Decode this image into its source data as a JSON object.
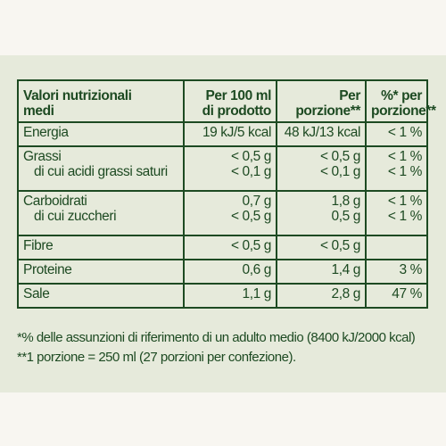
{
  "header": {
    "nutrient": [
      "Valori nutrizionali",
      "medi"
    ],
    "per_100": [
      "Per 100 ml",
      "di prodotto"
    ],
    "per_portion": [
      "Per",
      "porzione**"
    ],
    "percent": [
      "%* per",
      "porzione**"
    ]
  },
  "rows": [
    {
      "labels": [
        "Energia"
      ],
      "per_100": [
        "19 kJ/5 kcal"
      ],
      "per_portion": [
        "48 kJ/13 kcal"
      ],
      "percent": [
        "< 1 %"
      ]
    },
    {
      "labels": [
        "Grassi",
        "di cui acidi grassi saturi"
      ],
      "per_100": [
        "< 0,5 g",
        "< 0,1 g"
      ],
      "per_portion": [
        "< 0,5 g",
        "< 0,1 g"
      ],
      "percent": [
        "< 1 %",
        "< 1 %"
      ]
    },
    {
      "labels": [
        "Carboidrati",
        "di cui zuccheri"
      ],
      "per_100": [
        "0,7 g",
        "< 0,5 g"
      ],
      "per_portion": [
        "1,8 g",
        "0,5 g"
      ],
      "percent": [
        "< 1 %",
        "< 1 %"
      ]
    },
    {
      "labels": [
        "Fibre"
      ],
      "per_100": [
        "< 0,5 g"
      ],
      "per_portion": [
        "< 0,5 g"
      ],
      "percent": [
        ""
      ]
    },
    {
      "labels": [
        "Proteine"
      ],
      "per_100": [
        "0,6 g"
      ],
      "per_portion": [
        "1,4 g"
      ],
      "percent": [
        "3 %"
      ]
    },
    {
      "labels": [
        "Sale"
      ],
      "per_100": [
        "1,1 g"
      ],
      "per_portion": [
        "2,8 g"
      ],
      "percent": [
        "47 %"
      ]
    }
  ],
  "footnotes": {
    "ri": "*% delle assunzioni di riferimento di un adulto medio (8400 kJ/2000 kcal)",
    "portion": "**1 porzione = 250 ml (27 porzioni per confezione)."
  }
}
